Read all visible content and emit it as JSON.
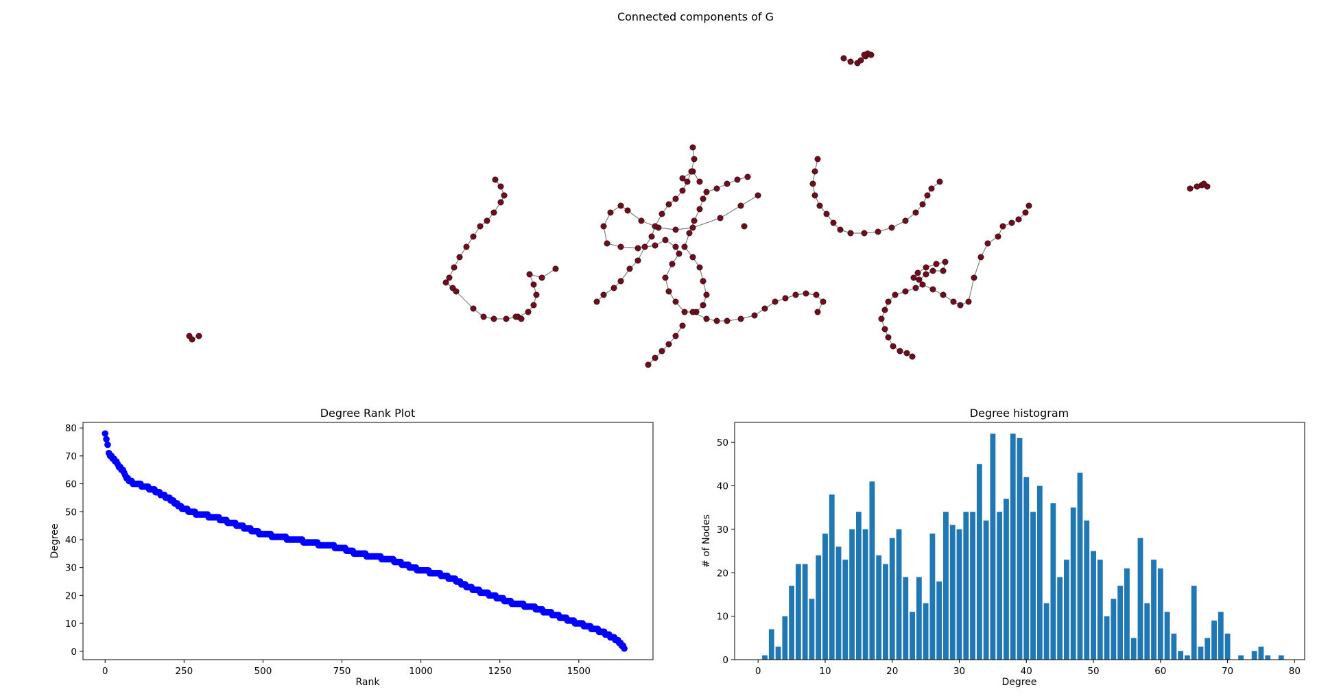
{
  "figure": {
    "title": "Connected components of G"
  },
  "chart_data": [
    {
      "type": "scatter",
      "title": "Degree Rank Plot",
      "xlabel": "Rank",
      "ylabel": "Degree",
      "xlim": [
        -70,
        1735
      ],
      "ylim": [
        -3,
        82
      ],
      "xticks": [
        0,
        250,
        500,
        750,
        1000,
        1250,
        1500
      ],
      "yticks": [
        0,
        10,
        20,
        30,
        40,
        50,
        60,
        70,
        80
      ],
      "marker_color": "#0000ff",
      "marker": "circle",
      "knots": [
        [
          0,
          78
        ],
        [
          5,
          76
        ],
        [
          10,
          72
        ],
        [
          15,
          70
        ],
        [
          25,
          69
        ],
        [
          35,
          68
        ],
        [
          45,
          66
        ],
        [
          60,
          64
        ],
        [
          75,
          61
        ],
        [
          100,
          60
        ],
        [
          150,
          58
        ],
        [
          200,
          55
        ],
        [
          250,
          51
        ],
        [
          300,
          49
        ],
        [
          350,
          48
        ],
        [
          400,
          46
        ],
        [
          450,
          44
        ],
        [
          500,
          42
        ],
        [
          550,
          41
        ],
        [
          600,
          40
        ],
        [
          650,
          39
        ],
        [
          700,
          38
        ],
        [
          750,
          37
        ],
        [
          800,
          35
        ],
        [
          850,
          34
        ],
        [
          900,
          33
        ],
        [
          950,
          31
        ],
        [
          1000,
          29
        ],
        [
          1050,
          28
        ],
        [
          1100,
          26
        ],
        [
          1150,
          23
        ],
        [
          1200,
          21
        ],
        [
          1250,
          19
        ],
        [
          1300,
          17
        ],
        [
          1350,
          16
        ],
        [
          1400,
          14
        ],
        [
          1450,
          12
        ],
        [
          1500,
          10
        ],
        [
          1550,
          8
        ],
        [
          1590,
          6
        ],
        [
          1620,
          4
        ],
        [
          1640,
          2
        ],
        [
          1645,
          1
        ]
      ]
    },
    {
      "type": "bar",
      "title": "Degree histogram",
      "xlabel": "Degree",
      "ylabel": "# of Nodes",
      "xlim": [
        -3.5,
        81.5
      ],
      "ylim": [
        0,
        54.6
      ],
      "xticks": [
        0,
        10,
        20,
        30,
        40,
        50,
        60,
        70,
        80
      ],
      "yticks": [
        0,
        10,
        20,
        30,
        40,
        50
      ],
      "bar_color": "#1f77b4",
      "x": [
        1,
        2,
        3,
        4,
        5,
        6,
        7,
        8,
        9,
        10,
        11,
        12,
        13,
        14,
        15,
        16,
        17,
        18,
        19,
        20,
        21,
        22,
        23,
        24,
        25,
        26,
        27,
        28,
        29,
        30,
        31,
        32,
        33,
        34,
        35,
        36,
        37,
        38,
        39,
        40,
        41,
        42,
        43,
        44,
        45,
        46,
        47,
        48,
        49,
        50,
        51,
        52,
        53,
        54,
        55,
        56,
        57,
        58,
        59,
        60,
        61,
        62,
        63,
        64,
        65,
        66,
        67,
        68,
        69,
        70,
        72,
        74,
        75,
        76,
        78
      ],
      "values": [
        1,
        7,
        3,
        10,
        17,
        22,
        22,
        14,
        24,
        29,
        38,
        26,
        23,
        30,
        34,
        30,
        41,
        24,
        22,
        28,
        30,
        19,
        11,
        19,
        13,
        29,
        18,
        34,
        31,
        30,
        34,
        34,
        45,
        32,
        52,
        34,
        37,
        52,
        51,
        42,
        34,
        40,
        13,
        36,
        19,
        23,
        35,
        43,
        32,
        25,
        23,
        10,
        14,
        17,
        21,
        5,
        28,
        13,
        23,
        21,
        11,
        6,
        2,
        1,
        17,
        3,
        5,
        9,
        11,
        6,
        1,
        2,
        3,
        1,
        1
      ]
    }
  ],
  "network": {
    "node_color": "#6b0f1f",
    "edge_color": "#7f7f7f",
    "components": [
      [
        [
          1105,
          285
        ],
        [
          1080,
          300
        ],
        [
          1050,
          318
        ],
        [
          1010,
          332
        ],
        [
          985,
          335
        ],
        [
          960,
          332
        ],
        [
          935,
          322
        ],
        [
          915,
          307
        ],
        [
          905,
          300
        ],
        [
          890,
          310
        ],
        [
          880,
          330
        ],
        [
          885,
          355
        ],
        [
          905,
          360
        ],
        [
          930,
          362
        ],
        [
          955,
          358
        ],
        [
          970,
          350
        ],
        [
          985,
          360
        ],
        [
          990,
          370
        ],
        [
          980,
          385
        ],
        [
          970,
          405
        ],
        [
          975,
          425
        ],
        [
          985,
          440
        ],
        [
          998,
          455
        ],
        [
          1015,
          455
        ],
        [
          1025,
          445
        ],
        [
          1030,
          430
        ],
        [
          1025,
          410
        ],
        [
          1020,
          390
        ],
        [
          1010,
          375
        ],
        [
          998,
          360
        ],
        [
          1005,
          340
        ],
        [
          1012,
          322
        ],
        [
          1020,
          305
        ],
        [
          1025,
          290
        ],
        [
          1030,
          280
        ],
        [
          1045,
          275
        ],
        [
          1060,
          268
        ],
        [
          1075,
          262
        ],
        [
          1090,
          258
        ],
        [
          1085,
          330
        ],
        [
          1020,
          265
        ],
        [
          1010,
          250
        ],
        [
          995,
          260
        ],
        [
          1010,
          455
        ],
        [
          1030,
          465
        ],
        [
          1045,
          468
        ],
        [
          1060,
          468
        ],
        [
          1080,
          465
        ],
        [
          1100,
          460
        ],
        [
          1115,
          450
        ],
        [
          1130,
          440
        ],
        [
          1145,
          435
        ],
        [
          1160,
          430
        ],
        [
          1175,
          428
        ],
        [
          1190,
          430
        ],
        [
          1200,
          440
        ],
        [
          1192,
          455
        ],
        [
          995,
          475
        ],
        [
          985,
          490
        ],
        [
          975,
          502
        ],
        [
          965,
          512
        ],
        [
          955,
          522
        ],
        [
          945,
          532
        ]
      ],
      [
        [
          1010,
          215
        ],
        [
          1012,
          232
        ],
        [
          1008,
          250
        ],
        [
          1002,
          265
        ],
        [
          995,
          278
        ],
        [
          985,
          290
        ],
        [
          975,
          298
        ],
        [
          965,
          312
        ],
        [
          955,
          330
        ],
        [
          950,
          345
        ],
        [
          940,
          360
        ],
        [
          930,
          380
        ],
        [
          918,
          392
        ],
        [
          905,
          410
        ],
        [
          895,
          420
        ],
        [
          880,
          430
        ],
        [
          870,
          440
        ]
      ],
      [
        [
          722,
          262
        ],
        [
          730,
          272
        ],
        [
          735,
          285
        ],
        [
          730,
          295
        ],
        [
          720,
          310
        ],
        [
          710,
          322
        ],
        [
          700,
          330
        ],
        [
          690,
          345
        ],
        [
          680,
          360
        ],
        [
          670,
          375
        ],
        [
          662,
          390
        ],
        [
          655,
          405
        ],
        [
          650,
          412
        ],
        [
          660,
          420
        ],
        [
          665,
          425
        ],
        [
          690,
          450
        ],
        [
          705,
          462
        ],
        [
          720,
          465
        ],
        [
          738,
          465
        ],
        [
          755,
          462
        ],
        [
          770,
          455
        ],
        [
          778,
          445
        ],
        [
          782,
          430
        ],
        [
          778,
          415
        ],
        [
          772,
          400
        ],
        [
          790,
          405
        ],
        [
          810,
          392
        ],
        [
          752,
          462
        ],
        [
          760,
          465
        ]
      ],
      [
        [
          1192,
          232
        ],
        [
          1188,
          250
        ],
        [
          1185,
          268
        ],
        [
          1188,
          285
        ],
        [
          1195,
          300
        ],
        [
          1205,
          312
        ],
        [
          1215,
          325
        ],
        [
          1225,
          335
        ],
        [
          1240,
          340
        ],
        [
          1260,
          340
        ],
        [
          1280,
          338
        ],
        [
          1300,
          332
        ],
        [
          1320,
          322
        ],
        [
          1335,
          310
        ],
        [
          1345,
          298
        ],
        [
          1352,
          285
        ],
        [
          1358,
          275
        ],
        [
          1370,
          265
        ]
      ],
      [
        [
          1500,
          300
        ],
        [
          1495,
          310
        ],
        [
          1485,
          320
        ],
        [
          1475,
          325
        ],
        [
          1462,
          330
        ],
        [
          1455,
          345
        ],
        [
          1440,
          355
        ],
        [
          1430,
          375
        ],
        [
          1420,
          405
        ],
        [
          1412,
          440
        ],
        [
          1400,
          445
        ],
        [
          1390,
          440
        ],
        [
          1375,
          430
        ],
        [
          1360,
          422
        ],
        [
          1345,
          415
        ],
        [
          1335,
          420
        ],
        [
          1320,
          425
        ],
        [
          1305,
          430
        ],
        [
          1295,
          440
        ],
        [
          1290,
          452
        ],
        [
          1285,
          465
        ],
        [
          1290,
          480
        ],
        [
          1295,
          492
        ],
        [
          1302,
          505
        ],
        [
          1312,
          512
        ],
        [
          1322,
          515
        ],
        [
          1330,
          520
        ],
        [
          1332,
          405
        ],
        [
          1338,
          398
        ],
        [
          1350,
          390
        ],
        [
          1365,
          385
        ],
        [
          1378,
          382
        ],
        [
          1375,
          395
        ],
        [
          1360,
          395
        ],
        [
          1350,
          400
        ],
        [
          1340,
          408
        ]
      ],
      [
        [
          1230,
          85
        ],
        [
          1240,
          90
        ],
        [
          1250,
          92
        ],
        [
          1255,
          88
        ],
        [
          1262,
          82
        ],
        [
          1265,
          78
        ],
        [
          1270,
          80
        ],
        [
          1260,
          80
        ]
      ],
      [
        [
          1735,
          275
        ],
        [
          1745,
          272
        ],
        [
          1752,
          270
        ],
        [
          1760,
          272
        ],
        [
          1755,
          268
        ]
      ],
      [
        [
          276,
          490
        ],
        [
          280,
          495
        ],
        [
          290,
          490
        ]
      ]
    ]
  }
}
